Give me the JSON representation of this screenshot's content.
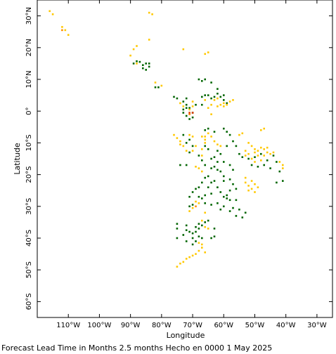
{
  "map": {
    "x_axis_title": "Longitude",
    "y_axis_title": "Latitude",
    "lon_range": [
      -120,
      -25
    ],
    "lat_range": [
      -65,
      35
    ],
    "lon_ticks": [
      {
        "value": -110,
        "label": "110°W"
      },
      {
        "value": -100,
        "label": "100°W"
      },
      {
        "value": -90,
        "label": "90°W"
      },
      {
        "value": -80,
        "label": "80°W"
      },
      {
        "value": -70,
        "label": "70°W"
      },
      {
        "value": -60,
        "label": "60°W"
      },
      {
        "value": -50,
        "label": "50°W"
      },
      {
        "value": -40,
        "label": "40°W"
      },
      {
        "value": -30,
        "label": "30°W"
      }
    ],
    "lat_ticks": [
      {
        "value": 30,
        "label": "30°N"
      },
      {
        "value": 20,
        "label": "20°N"
      },
      {
        "value": 10,
        "label": "10°N"
      },
      {
        "value": 0,
        "label": "0°"
      },
      {
        "value": -10,
        "label": "10°S"
      },
      {
        "value": -20,
        "label": "20°S"
      },
      {
        "value": -30,
        "label": "30°S"
      },
      {
        "value": -40,
        "label": "40°S"
      },
      {
        "value": -50,
        "label": "50°S"
      },
      {
        "value": -60,
        "label": "60°S"
      }
    ],
    "colors": {
      "green": "#006400",
      "yellow": "#ffc800",
      "orange": "#ff8c00",
      "red": "#e23c00"
    },
    "markers": {
      "green": [
        [
          -89,
          15
        ],
        [
          -88,
          15.7
        ],
        [
          -87,
          15.5
        ],
        [
          -86,
          14.5
        ],
        [
          -86,
          13.5
        ],
        [
          -85,
          15
        ],
        [
          -84,
          15
        ],
        [
          -84,
          14
        ],
        [
          -85,
          13
        ],
        [
          -82,
          7.5
        ],
        [
          -81,
          7.5
        ],
        [
          -76,
          4.5
        ],
        [
          -75,
          4
        ],
        [
          -72,
          4
        ],
        [
          -73,
          3
        ],
        [
          -72,
          2
        ],
        [
          -72,
          1
        ],
        [
          -73,
          0.5
        ],
        [
          -73,
          -0.5
        ],
        [
          -72,
          -1.5
        ],
        [
          -71,
          -2.5
        ],
        [
          -70,
          -2
        ],
        [
          -70,
          -0.5
        ],
        [
          -71,
          1
        ],
        [
          -69,
          2
        ],
        [
          -68,
          10
        ],
        [
          -67,
          9.5
        ],
        [
          -66,
          10
        ],
        [
          -64,
          9
        ],
        [
          -62,
          7
        ],
        [
          -62,
          5.5
        ],
        [
          -63,
          4.5
        ],
        [
          -64,
          4
        ],
        [
          -61,
          4.5
        ],
        [
          -60,
          5
        ],
        [
          -60,
          3.5
        ],
        [
          -59,
          2.5
        ],
        [
          -65,
          5
        ],
        [
          -66,
          5
        ],
        [
          -67,
          4.5
        ],
        [
          -67,
          2
        ],
        [
          -66,
          -6
        ],
        [
          -65,
          -5.5
        ],
        [
          -63,
          -6.5
        ],
        [
          -60,
          -5.5
        ],
        [
          -59,
          -6.5
        ],
        [
          -58,
          -7.5
        ],
        [
          -57,
          -9.5
        ],
        [
          -56,
          -11
        ],
        [
          -55,
          -13.5
        ],
        [
          -54,
          -14.5
        ],
        [
          -52,
          -15
        ],
        [
          -50,
          -14.5
        ],
        [
          -48,
          -13.5
        ],
        [
          -46,
          -15.5
        ],
        [
          -47,
          -17
        ],
        [
          -49,
          -17.5
        ],
        [
          -51,
          -17
        ],
        [
          -44,
          -14
        ],
        [
          -43,
          -16
        ],
        [
          -42,
          -19
        ],
        [
          -41,
          -22
        ],
        [
          -43,
          -22.5
        ],
        [
          -45,
          -18
        ],
        [
          -68,
          -14
        ],
        [
          -67,
          -15.5
        ],
        [
          -66,
          -17
        ],
        [
          -64,
          -18
        ],
        [
          -63,
          -17.5
        ],
        [
          -62,
          -18.5
        ],
        [
          -62,
          -16
        ],
        [
          -60,
          -16
        ],
        [
          -58,
          -17
        ],
        [
          -57,
          -18.5
        ],
        [
          -61,
          -19
        ],
        [
          -60,
          -20.5
        ],
        [
          -60,
          -22
        ],
        [
          -58,
          -21.5
        ],
        [
          -57,
          -23
        ],
        [
          -56,
          -24.5
        ],
        [
          -58,
          -25
        ],
        [
          -59,
          -26.5
        ],
        [
          -61,
          -25.5
        ],
        [
          -62,
          -24
        ],
        [
          -63,
          -22
        ],
        [
          -64,
          -22.5
        ],
        [
          -65,
          -20.5
        ],
        [
          -66,
          -21
        ],
        [
          -67,
          -22.5
        ],
        [
          -68,
          -24
        ],
        [
          -69,
          -24.5
        ],
        [
          -70,
          -25.5
        ],
        [
          -71,
          -27
        ],
        [
          -70,
          -29.5
        ],
        [
          -71,
          -30
        ],
        [
          -68,
          -27
        ],
        [
          -66,
          -29
        ],
        [
          -64,
          -29.5
        ],
        [
          -62,
          -29
        ],
        [
          -60,
          -30
        ],
        [
          -58,
          -31.5
        ],
        [
          -56,
          -33
        ],
        [
          -54,
          -33.5
        ],
        [
          -53,
          -32
        ],
        [
          -55,
          -31
        ],
        [
          -57,
          -30.5
        ],
        [
          -56,
          -28
        ],
        [
          -58,
          -28
        ],
        [
          -60,
          -27
        ],
        [
          -61,
          -31
        ],
        [
          -59,
          -27.5
        ],
        [
          -64,
          -26
        ],
        [
          -65,
          -24
        ],
        [
          -66,
          -26.5
        ],
        [
          -67,
          -27.5
        ],
        [
          -74,
          -17
        ],
        [
          -72,
          -17
        ],
        [
          -71,
          -13
        ],
        [
          -72,
          -10
        ],
        [
          -71,
          -9
        ],
        [
          -73,
          -7.5
        ],
        [
          -70,
          -11
        ],
        [
          -66,
          -11
        ],
        [
          -65,
          -12
        ],
        [
          -62,
          -12.5
        ],
        [
          -61,
          -13.5
        ],
        [
          -59,
          -11
        ],
        [
          -63,
          -14.5
        ],
        [
          -64,
          -15
        ],
        [
          -68,
          -35.5
        ],
        [
          -68,
          -37
        ],
        [
          -69,
          -38
        ],
        [
          -70,
          -38.5
        ],
        [
          -70,
          -40
        ],
        [
          -69,
          -41
        ],
        [
          -67,
          -40
        ],
        [
          -68,
          -39.5
        ],
        [
          -71,
          -38
        ],
        [
          -72,
          -37.5
        ],
        [
          -72,
          -36
        ],
        [
          -69,
          -36.5
        ],
        [
          -67,
          -36
        ],
        [
          -75,
          -35.5
        ],
        [
          -75,
          -37
        ],
        [
          -73,
          -39
        ],
        [
          -72,
          -41
        ],
        [
          -70,
          -42
        ],
        [
          -66,
          -35
        ],
        [
          -65,
          -34.5
        ],
        [
          -63,
          -37
        ],
        [
          -63,
          -39.5
        ],
        [
          -64,
          -40
        ],
        [
          -75,
          -40
        ]
      ],
      "yellow": [
        [
          -116,
          31.5
        ],
        [
          -115,
          30.5
        ],
        [
          -112,
          26.5
        ],
        [
          -111,
          25.5
        ],
        [
          -110,
          24
        ],
        [
          -84,
          31
        ],
        [
          -83,
          30.5
        ],
        [
          -84,
          22.5
        ],
        [
          -89,
          19.5
        ],
        [
          -88,
          20.5
        ],
        [
          -90,
          17.5
        ],
        [
          -88,
          15
        ],
        [
          -82,
          9
        ],
        [
          -80,
          8
        ],
        [
          -73,
          19.5
        ],
        [
          -66,
          18
        ],
        [
          -65,
          18.5
        ],
        [
          -74,
          2.5
        ],
        [
          -73,
          1.5
        ],
        [
          -71,
          0.5
        ],
        [
          -70,
          1.5
        ],
        [
          -70,
          3
        ],
        [
          -66,
          3.5
        ],
        [
          -65,
          1
        ],
        [
          -64,
          2
        ],
        [
          -64,
          -1
        ],
        [
          -62,
          1.5
        ],
        [
          -60,
          2.5
        ],
        [
          -60,
          1.5
        ],
        [
          -59,
          2
        ],
        [
          -58,
          3
        ],
        [
          -57,
          3.5
        ],
        [
          -61,
          2
        ],
        [
          -62,
          4
        ],
        [
          -63,
          3.5
        ],
        [
          -76,
          -7.5
        ],
        [
          -75,
          -8.5
        ],
        [
          -74,
          -9.5
        ],
        [
          -74,
          -10.5
        ],
        [
          -73,
          -11
        ],
        [
          -72,
          -12.5
        ],
        [
          -71,
          -7.5
        ],
        [
          -70,
          -8
        ],
        [
          -70,
          -12.5
        ],
        [
          -69,
          -11
        ],
        [
          -67,
          -8
        ],
        [
          -66,
          -9
        ],
        [
          -66,
          -8
        ],
        [
          -65,
          -7
        ],
        [
          -64,
          -8
        ],
        [
          -63,
          -9.5
        ],
        [
          -62,
          -10.5
        ],
        [
          -61,
          -11
        ],
        [
          -66,
          -10
        ],
        [
          -67,
          -12
        ],
        [
          -68,
          -18
        ],
        [
          -67,
          -19
        ],
        [
          -69,
          -17.5
        ],
        [
          -55,
          -7.5
        ],
        [
          -54,
          -7
        ],
        [
          -52,
          -10
        ],
        [
          -51,
          -11
        ],
        [
          -50,
          -12
        ],
        [
          -49,
          -12.5
        ],
        [
          -48,
          -11.5
        ],
        [
          -47,
          -12
        ],
        [
          -46,
          -13
        ],
        [
          -47,
          -14
        ],
        [
          -49,
          -14
        ],
        [
          -50,
          -13
        ],
        [
          -52,
          -13.5
        ],
        [
          -53,
          -14
        ],
        [
          -53,
          -12.5
        ],
        [
          -51,
          -15
        ],
        [
          -50,
          -16
        ],
        [
          -48,
          -15.5
        ],
        [
          -42,
          -16
        ],
        [
          -41,
          -17
        ],
        [
          -41,
          -18
        ],
        [
          -45,
          -13.5
        ],
        [
          -46,
          -11.5
        ],
        [
          -44,
          -13
        ],
        [
          -48,
          -6
        ],
        [
          -47,
          -5.5
        ],
        [
          -51,
          -22
        ],
        [
          -50,
          -23
        ],
        [
          -49,
          -24
        ],
        [
          -51,
          -24.5
        ],
        [
          -52,
          -23.5
        ],
        [
          -53,
          -22.5
        ],
        [
          -52,
          -25
        ],
        [
          -50,
          -25.5
        ],
        [
          -53,
          -21
        ],
        [
          -67,
          -14
        ],
        [
          -69,
          -28.5
        ],
        [
          -68,
          -29
        ],
        [
          -70,
          -30.5
        ],
        [
          -66,
          -32
        ],
        [
          -71,
          -31.5
        ],
        [
          -66,
          -36.5
        ],
        [
          -65,
          -37
        ],
        [
          -67,
          -34.5
        ],
        [
          -67,
          -43
        ],
        [
          -68,
          -44
        ],
        [
          -66,
          -44.5
        ],
        [
          -69,
          -45
        ],
        [
          -70,
          -45.5
        ],
        [
          -71,
          -46
        ],
        [
          -72,
          -46.5
        ],
        [
          -73,
          -47.5
        ],
        [
          -74,
          -48
        ],
        [
          -75,
          -49
        ],
        [
          -67,
          -42
        ],
        [
          -68,
          -41.5
        ]
      ],
      "orange": [
        [
          -112,
          25.5
        ],
        [
          -71,
          -1
        ],
        [
          -69,
          -30
        ]
      ],
      "red": [
        [
          -71,
          -0.5
        ],
        [
          -70,
          -0.5
        ]
      ]
    }
  },
  "caption": "Forecast Lead Time in Months 2.5 months Hecho en 0000 1 May 2025"
}
